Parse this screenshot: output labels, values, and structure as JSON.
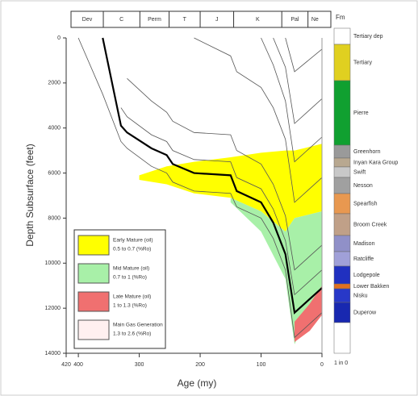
{
  "chart_data": {
    "type": "burial",
    "y_label": "Depth Subsurface (feet)",
    "x_label": "Age (my)",
    "xlim": [
      420,
      0
    ],
    "ylim": [
      14000,
      0
    ],
    "xticks": [
      420,
      400,
      300,
      200,
      100,
      0
    ],
    "yticks": [
      0,
      2000,
      4000,
      6000,
      8000,
      10000,
      12000,
      14000
    ],
    "period_names": [
      "Dev",
      "C",
      "Perm",
      "T",
      "J",
      "K",
      "Pal",
      "Ne"
    ],
    "period_bounds": [
      416,
      359,
      299,
      251,
      200,
      145,
      66,
      23,
      0
    ],
    "x": [
      400,
      360,
      330,
      320,
      280,
      255,
      245,
      210,
      150,
      140,
      100,
      80,
      60,
      45,
      0
    ],
    "series": [
      {
        "color": "#555555",
        "values": [
          0,
          2500,
          4600,
          4900,
          5700,
          6000,
          6400,
          6800,
          6900,
          7500,
          8000,
          8900,
          10300,
          13300,
          12200
        ]
      },
      {
        "color": "#000000",
        "values": [
          null,
          0,
          3900,
          4200,
          4900,
          5200,
          5600,
          6000,
          6100,
          6800,
          7300,
          8200,
          9600,
          12200,
          11100
        ]
      },
      {
        "color": "#555555",
        "values": [
          null,
          null,
          3100,
          3500,
          4300,
          4600,
          5000,
          5400,
          5500,
          6200,
          6700,
          7600,
          9000,
          11400,
          10300
        ]
      },
      {
        "color": "#555555",
        "values": [
          null,
          null,
          null,
          1800,
          2800,
          3300,
          3700,
          4200,
          4300,
          5000,
          5600,
          6500,
          7900,
          10300,
          9200
        ]
      },
      {
        "color": "#555555",
        "values": [
          null,
          null,
          null,
          null,
          null,
          null,
          null,
          0,
          800,
          1500,
          2200,
          3100,
          4500,
          7300,
          6200
        ]
      },
      {
        "color": "#555555",
        "values": [
          null,
          null,
          null,
          null,
          null,
          null,
          null,
          null,
          null,
          null,
          0,
          1200,
          2800,
          5500,
          4400
        ]
      },
      {
        "color": "#555555",
        "values": [
          null,
          null,
          null,
          null,
          null,
          null,
          null,
          null,
          null,
          null,
          null,
          0,
          1300,
          3800,
          2700
        ]
      },
      {
        "color": "#555555",
        "values": [
          null,
          null,
          null,
          null,
          null,
          null,
          null,
          null,
          null,
          null,
          null,
          null,
          0,
          1500,
          500
        ]
      }
    ],
    "zones": [
      {
        "name": "Early Mature (oil)",
        "range": "0.5 to 0.7 (%Ro)",
        "color": "#ffff00",
        "x": [
          300,
          255,
          210,
          150,
          100,
          60,
          45,
          0
        ],
        "top": [
          6100,
          5700,
          5500,
          5300,
          5100,
          5000,
          5000,
          4700
        ],
        "bottom": [
          6300,
          6500,
          6900,
          7100,
          7700,
          8600,
          8000,
          7700
        ]
      },
      {
        "name": "Mid Mature (oil)",
        "range": "0.7 to 1 (%Ro)",
        "color": "#a8f0a8",
        "x": [
          150,
          100,
          60,
          45,
          0
        ],
        "top": [
          7100,
          7700,
          8600,
          8000,
          7700
        ],
        "bottom": [
          7300,
          8600,
          10700,
          13600,
          11000
        ]
      },
      {
        "name": "Late Mature (oil)",
        "range": "1 to 1.3 (%Ro)",
        "color": "#f07070",
        "x": [
          45,
          20,
          0
        ],
        "top": [
          12600,
          11800,
          11000
        ],
        "bottom": [
          13500,
          13000,
          12300
        ]
      },
      {
        "name": "Main Gas Generation",
        "range": "1.3 to 2.6 (%Ro)",
        "color": "#fff0f0",
        "x": [],
        "top": [],
        "bottom": []
      }
    ],
    "formation_header": "Fm",
    "formation_footer": "1 in 0",
    "formations": [
      {
        "name": "Tertiary dep",
        "color": "#ffffff"
      },
      {
        "name": "Tertiary",
        "color": "#e0d020"
      },
      {
        "name": "Pierre",
        "color": "#10a030"
      },
      {
        "name": "Greenhorn",
        "color": "#9a9a9a"
      },
      {
        "name": "Inyan Kara Group",
        "color": "#b8a890"
      },
      {
        "name": "Swift",
        "color": "#c8c8c8"
      },
      {
        "name": "Nesson",
        "color": "#a0a0a0"
      },
      {
        "name": "Spearfish",
        "color": "#e89850"
      },
      {
        "name": "Broom Creek",
        "color": "#c0a088"
      },
      {
        "name": "Madison",
        "color": "#9090c8"
      },
      {
        "name": "Ratcliffe",
        "color": "#a0a0d8"
      },
      {
        "name": "Lodgepole",
        "color": "#2030c0"
      },
      {
        "name": "Lower Bakken",
        "color": "#e07020",
        "label_color": "#e02020"
      },
      {
        "name": "Nisku",
        "color": "#2838c8"
      },
      {
        "name": "Duperow",
        "color": "#1828b0"
      }
    ]
  }
}
